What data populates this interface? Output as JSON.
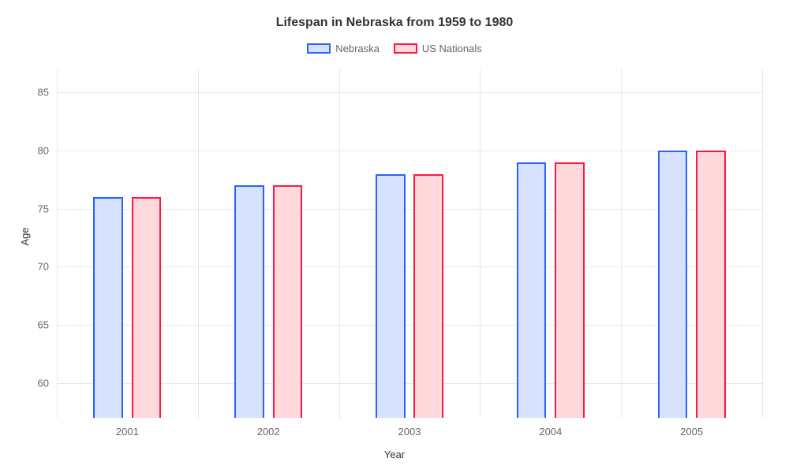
{
  "chart": {
    "type": "bar",
    "title": "Lifespan in Nebraska from 1959 to 1980",
    "title_fontsize": 16,
    "title_color": "#333333",
    "background_color": "#ffffff",
    "grid_color": "#e8e8e8",
    "tick_color": "#666666",
    "label_color": "#333333",
    "tick_fontsize": 13,
    "label_fontsize": 13,
    "xlabel": "Year",
    "ylabel": "Age",
    "categories": [
      "2001",
      "2002",
      "2003",
      "2004",
      "2005"
    ],
    "ylim": [
      57,
      87
    ],
    "yticks": [
      60,
      65,
      70,
      75,
      80,
      85
    ],
    "bar_width_pct": 4.2,
    "bar_gap_pct": 1.2,
    "series": [
      {
        "name": "Nebraska",
        "border_color": "#2962ff",
        "fill_color": "#d6e2ff",
        "values": [
          76,
          77,
          78,
          79,
          80
        ]
      },
      {
        "name": "US Nationals",
        "border_color": "#ff1744",
        "fill_color": "#ffd9dc",
        "values": [
          76,
          77,
          78,
          79,
          80
        ]
      }
    ],
    "legend": {
      "swatch_width": 30,
      "swatch_height": 13,
      "fontsize": 13,
      "text_color": "#666666"
    }
  }
}
